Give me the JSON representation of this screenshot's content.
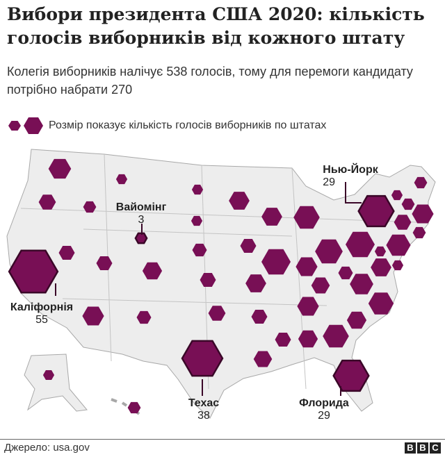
{
  "header": {
    "title": "Вибори президента США 2020: кількість голосів виборників від кожного штату",
    "subtitle": "Колегія виборників налічує 538 голосів, тому для перемоги кандидату потрібно набрати 270"
  },
  "legend": {
    "text": "Розмір показує кількість голосів виборників по штатах"
  },
  "colors": {
    "hex_fill": "#780f55",
    "highlight_stroke": "#3a0728",
    "land": "#ededed",
    "border": "#a8a8a8"
  },
  "states": [
    {
      "id": "WA",
      "votes": 12
    },
    {
      "id": "OR",
      "votes": 7
    },
    {
      "id": "CA",
      "votes": 55,
      "highlight": true
    },
    {
      "id": "NV",
      "votes": 6
    },
    {
      "id": "ID",
      "votes": 4
    },
    {
      "id": "MT",
      "votes": 3
    },
    {
      "id": "WY",
      "votes": 3,
      "highlight": true
    },
    {
      "id": "UT",
      "votes": 6
    },
    {
      "id": "AZ",
      "votes": 11
    },
    {
      "id": "CO",
      "votes": 9
    },
    {
      "id": "NM",
      "votes": 5
    },
    {
      "id": "ND",
      "votes": 3
    },
    {
      "id": "SD",
      "votes": 3
    },
    {
      "id": "NE",
      "votes": 5
    },
    {
      "id": "KS",
      "votes": 6
    },
    {
      "id": "OK",
      "votes": 7
    },
    {
      "id": "TX",
      "votes": 38,
      "highlight": true
    },
    {
      "id": "MN",
      "votes": 10
    },
    {
      "id": "IA",
      "votes": 6
    },
    {
      "id": "MO",
      "votes": 10
    },
    {
      "id": "AR",
      "votes": 6
    },
    {
      "id": "LA",
      "votes": 8
    },
    {
      "id": "WI",
      "votes": 10
    },
    {
      "id": "IL",
      "votes": 20
    },
    {
      "id": "MI",
      "votes": 16
    },
    {
      "id": "IN",
      "votes": 11
    },
    {
      "id": "OH",
      "votes": 18
    },
    {
      "id": "KY",
      "votes": 8
    },
    {
      "id": "TN",
      "votes": 11
    },
    {
      "id": "MS",
      "votes": 6
    },
    {
      "id": "AL",
      "votes": 9
    },
    {
      "id": "GA",
      "votes": 16
    },
    {
      "id": "FL",
      "votes": 29,
      "highlight": true
    },
    {
      "id": "SC",
      "votes": 9
    },
    {
      "id": "NC",
      "votes": 15
    },
    {
      "id": "VA",
      "votes": 13
    },
    {
      "id": "WV",
      "votes": 5
    },
    {
      "id": "MD",
      "votes": 10
    },
    {
      "id": "DC",
      "votes": 3
    },
    {
      "id": "DE",
      "votes": 3
    },
    {
      "id": "PA",
      "votes": 20
    },
    {
      "id": "NJ",
      "votes": 14
    },
    {
      "id": "NY",
      "votes": 29,
      "highlight": true
    },
    {
      "id": "CT",
      "votes": 7
    },
    {
      "id": "RI",
      "votes": 4
    },
    {
      "id": "MA",
      "votes": 11
    },
    {
      "id": "VT",
      "votes": 3
    },
    {
      "id": "NH",
      "votes": 4
    },
    {
      "id": "ME",
      "votes": 4
    },
    {
      "id": "AK",
      "votes": 3
    },
    {
      "id": "HI",
      "votes": 4
    }
  ],
  "callouts": {
    "wyoming": {
      "name": "Вайомінг",
      "votes": "3"
    },
    "newyork": {
      "name": "Нью-Йорк",
      "votes": "29"
    },
    "california": {
      "name": "Каліфорнія",
      "votes": "55"
    },
    "texas": {
      "name": "Техас",
      "votes": "38"
    },
    "florida": {
      "name": "Флорида",
      "votes": "29"
    }
  },
  "footer": {
    "source": "Джерело: usa.gov",
    "logo": [
      "B",
      "B",
      "C"
    ]
  }
}
